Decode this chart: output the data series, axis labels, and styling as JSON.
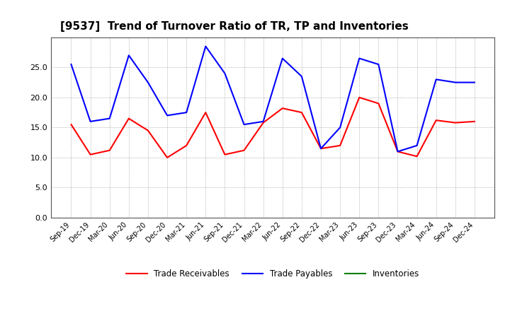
{
  "title": "[9537]  Trend of Turnover Ratio of TR, TP and Inventories",
  "labels": [
    "Sep-19",
    "Dec-19",
    "Mar-20",
    "Jun-20",
    "Sep-20",
    "Dec-20",
    "Mar-21",
    "Jun-21",
    "Sep-21",
    "Dec-21",
    "Mar-22",
    "Jun-22",
    "Sep-22",
    "Dec-22",
    "Mar-23",
    "Jun-23",
    "Sep-23",
    "Dec-23",
    "Mar-24",
    "Jun-24",
    "Sep-24",
    "Dec-24"
  ],
  "trade_receivables": [
    15.5,
    10.5,
    11.2,
    16.5,
    14.5,
    10.0,
    12.0,
    17.5,
    10.5,
    11.2,
    15.8,
    18.2,
    17.5,
    11.5,
    12.0,
    20.0,
    19.0,
    11.0,
    10.2,
    16.2,
    15.8,
    16.0
  ],
  "trade_payables": [
    25.5,
    16.0,
    16.5,
    27.0,
    22.5,
    17.0,
    17.5,
    28.5,
    24.0,
    15.5,
    16.0,
    26.5,
    23.5,
    11.5,
    15.0,
    26.5,
    25.5,
    11.0,
    12.0,
    23.0,
    22.5,
    22.5
  ],
  "inventories": [
    null,
    null,
    null,
    null,
    null,
    null,
    null,
    null,
    null,
    null,
    null,
    null,
    null,
    null,
    null,
    null,
    null,
    null,
    null,
    null,
    null,
    null
  ],
  "tr_color": "#ff0000",
  "tp_color": "#0000ff",
  "inv_color": "#008000",
  "ylim": [
    0,
    30
  ],
  "yticks": [
    0.0,
    5.0,
    10.0,
    15.0,
    20.0,
    25.0
  ],
  "background_color": "#ffffff",
  "grid_color": "#999999",
  "legend_labels": [
    "Trade Receivables",
    "Trade Payables",
    "Inventories"
  ],
  "title_fontsize": 11,
  "spine_color": "#555555"
}
